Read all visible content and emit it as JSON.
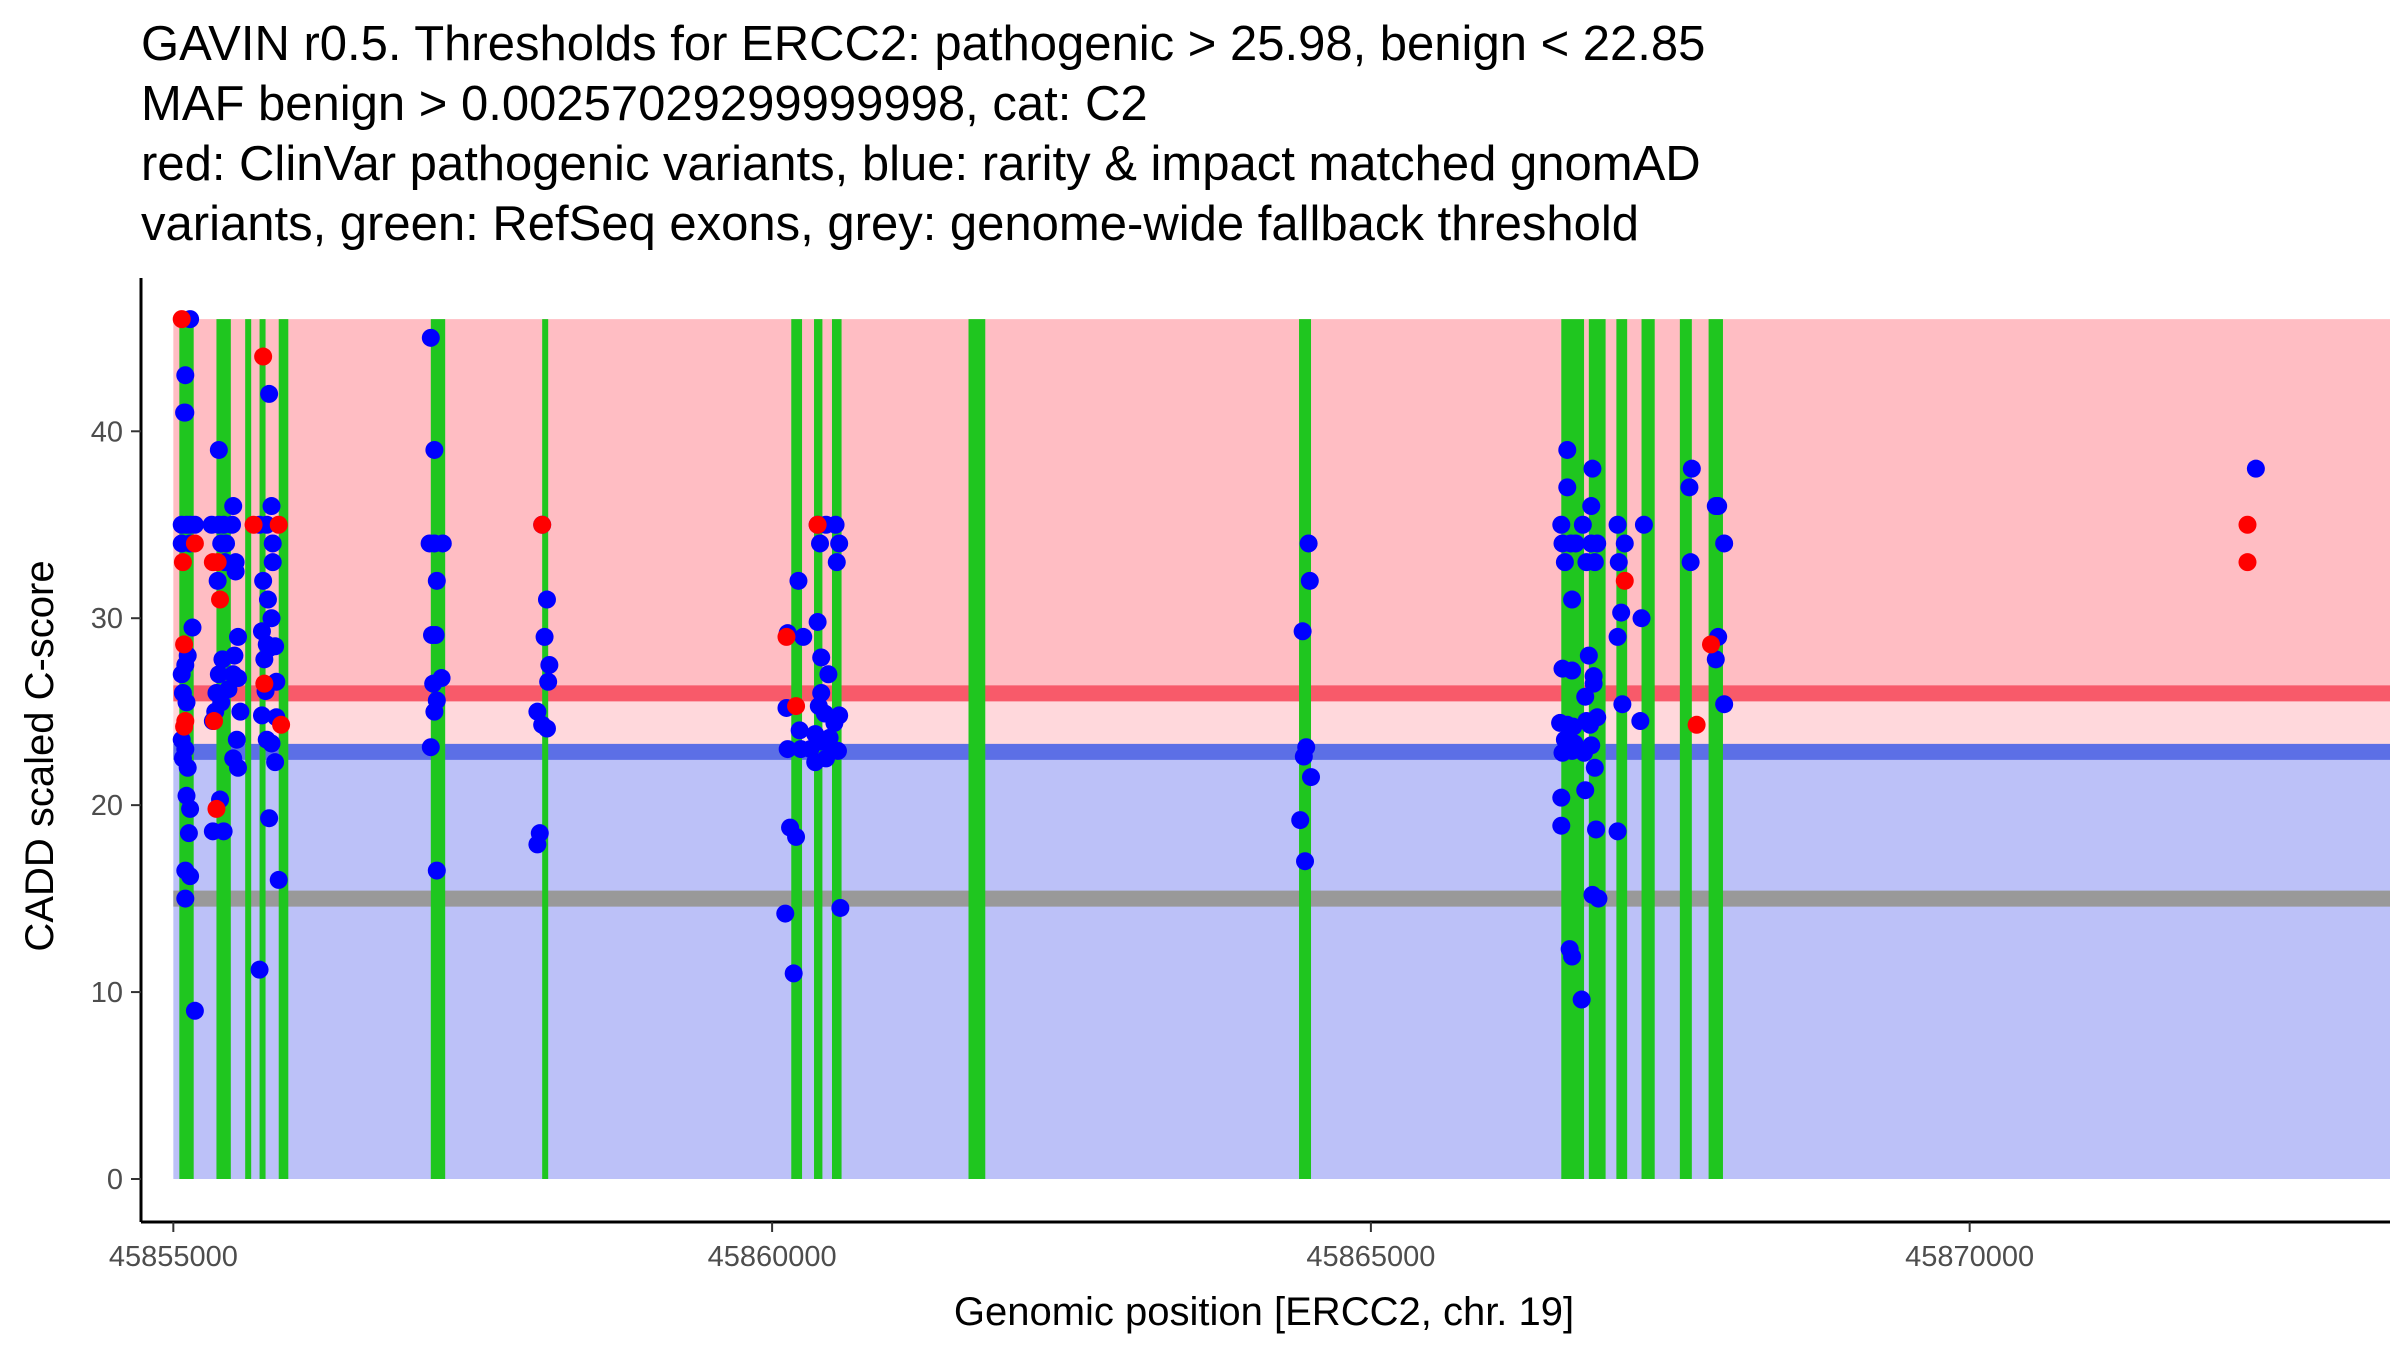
{
  "title_lines": [
    "GAVIN r0.5. Thresholds for ERCC2: pathogenic > 25.98, benign < 22.85",
    "MAF benign > 0.00257029299999998, cat: C2",
    "red: ClinVar pathogenic variants, blue: rarity & impact matched gnomAD",
    "variants, green: RefSeq exons, grey: genome-wide fallback threshold"
  ],
  "chart_data": {
    "type": "scatter",
    "xlabel": "Genomic position [ERCC2, chr. 19]",
    "ylabel": "CADD scaled C-score",
    "xlim": [
      45854730,
      45873510
    ],
    "ylim": [
      -2.3,
      48.2
    ],
    "x_ticks": [
      45855000,
      45860000,
      45865000,
      45870000
    ],
    "x_tick_labels": [
      "45855000",
      "45860000",
      "45865000",
      "45870000"
    ],
    "y_ticks": [
      0,
      10,
      20,
      30,
      40
    ],
    "y_tick_labels": [
      "0",
      "10",
      "20",
      "30",
      "40"
    ],
    "colors": {
      "pathogenic_region": "#ffbdc3",
      "vus_region": "#ffd8dc",
      "benign_region": "#bcc1f8",
      "pathogenic_line": "#f85a6a",
      "benign_line": "#5c6fe6",
      "fallback_line": "#999999",
      "exon": "#1fc61f",
      "pathogenic_point": "#ff0000",
      "population_point": "#0000ff"
    },
    "regions": {
      "x_start": 45855000,
      "x_end": 45873510,
      "pathogenic": [
        25.98,
        46
      ],
      "vus": [
        22.85,
        25.98
      ],
      "benign": [
        0,
        22.85
      ]
    },
    "thresholds": {
      "pathogenic": 25.98,
      "benign": 22.85,
      "fallback": 15
    },
    "exons": [
      [
        45855050,
        45855170
      ],
      [
        45855360,
        45855480
      ],
      [
        45855600,
        45855650
      ],
      [
        45855720,
        45855770
      ],
      [
        45855880,
        45855960
      ],
      [
        45857150,
        45857270
      ],
      [
        45858080,
        45858130
      ],
      [
        45860160,
        45860250
      ],
      [
        45860350,
        45860420
      ],
      [
        45860500,
        45860580
      ],
      [
        45861640,
        45861780
      ],
      [
        45864400,
        45864500
      ],
      [
        45866590,
        45866780
      ],
      [
        45866820,
        45866960
      ],
      [
        45867050,
        45867140
      ],
      [
        45867260,
        45867370
      ],
      [
        45867580,
        45867680
      ],
      [
        45867820,
        45867940
      ]
    ],
    "series": [
      {
        "name": "ClinVar pathogenic",
        "color": "#ff0000",
        "points": [
          [
            45855070,
            46
          ],
          [
            45855100,
            24.5
          ],
          [
            45855090,
            24.2
          ],
          [
            45855080,
            33
          ],
          [
            45855090,
            28.6
          ],
          [
            45855180,
            34
          ],
          [
            45855340,
            24.5
          ],
          [
            45855330,
            33
          ],
          [
            45855370,
            33
          ],
          [
            45855360,
            19.8
          ],
          [
            45855390,
            31
          ],
          [
            45855670,
            35
          ],
          [
            45855750,
            44
          ],
          [
            45855760,
            26.5
          ],
          [
            45855880,
            35
          ],
          [
            45855900,
            24.3
          ],
          [
            45858080,
            35
          ],
          [
            45860120,
            29
          ],
          [
            45860200,
            25.3
          ],
          [
            45860380,
            35
          ],
          [
            45867120,
            32
          ],
          [
            45867720,
            24.3
          ],
          [
            45867840,
            28.6
          ],
          [
            45872320,
            35
          ],
          [
            45872320,
            33
          ]
        ]
      },
      {
        "name": "gnomAD matched",
        "color": "#0000ff",
        "points": [
          [
            45855140,
            46
          ],
          [
            45855100,
            43
          ],
          [
            45855090,
            41
          ],
          [
            45855100,
            41
          ],
          [
            45855070,
            35
          ],
          [
            45855110,
            35
          ],
          [
            45855140,
            35
          ],
          [
            45855180,
            35
          ],
          [
            45855070,
            34
          ],
          [
            45855140,
            34
          ],
          [
            45855070,
            27
          ],
          [
            45855100,
            27.5
          ],
          [
            45855080,
            26
          ],
          [
            45855110,
            25.5
          ],
          [
            45855070,
            23.5
          ],
          [
            45855100,
            23
          ],
          [
            45855080,
            22.5
          ],
          [
            45855120,
            22
          ],
          [
            45855110,
            20.5
          ],
          [
            45855140,
            19.8
          ],
          [
            45855130,
            18.5
          ],
          [
            45855100,
            16.5
          ],
          [
            45855140,
            16.2
          ],
          [
            45855100,
            15
          ],
          [
            45855180,
            9
          ],
          [
            45855160,
            29.5
          ],
          [
            45855120,
            28
          ],
          [
            45855380,
            39
          ],
          [
            45855320,
            35
          ],
          [
            45855380,
            35
          ],
          [
            45855400,
            34
          ],
          [
            45855420,
            35
          ],
          [
            45855440,
            34
          ],
          [
            45855370,
            32
          ],
          [
            45855430,
            33
          ],
          [
            45855410,
            27.8
          ],
          [
            45855380,
            27
          ],
          [
            45855360,
            26
          ],
          [
            45855400,
            25.5
          ],
          [
            45855350,
            25
          ],
          [
            45855330,
            24.5
          ],
          [
            45855390,
            20.3
          ],
          [
            45855330,
            18.6
          ],
          [
            45855420,
            18.6
          ],
          [
            45855460,
            26.2
          ],
          [
            45855500,
            36
          ],
          [
            45855520,
            32.5
          ],
          [
            45855540,
            29
          ],
          [
            45855510,
            28
          ],
          [
            45855500,
            27
          ],
          [
            45855540,
            26.8
          ],
          [
            45855560,
            25
          ],
          [
            45855530,
            23.5
          ],
          [
            45855500,
            22.5
          ],
          [
            45855540,
            22
          ],
          [
            45855490,
            35
          ],
          [
            45855520,
            33
          ],
          [
            45855800,
            42
          ],
          [
            45855820,
            36
          ],
          [
            45855780,
            35
          ],
          [
            45855830,
            34
          ],
          [
            45855720,
            35
          ],
          [
            45855750,
            32
          ],
          [
            45855830,
            33
          ],
          [
            45855790,
            31
          ],
          [
            45855820,
            30
          ],
          [
            45855740,
            29.3
          ],
          [
            45855780,
            28.6
          ],
          [
            45855800,
            28.4
          ],
          [
            45855850,
            28.5
          ],
          [
            45855760,
            27.8
          ],
          [
            45855860,
            26.6
          ],
          [
            45855770,
            26.1
          ],
          [
            45855740,
            24.8
          ],
          [
            45855860,
            24.7
          ],
          [
            45855780,
            23.5
          ],
          [
            45855820,
            23.3
          ],
          [
            45855850,
            22.3
          ],
          [
            45855800,
            19.3
          ],
          [
            45855880,
            16
          ],
          [
            45855720,
            11.2
          ],
          [
            45857150,
            45
          ],
          [
            45857180,
            39
          ],
          [
            45857140,
            34
          ],
          [
            45857180,
            34
          ],
          [
            45857250,
            34
          ],
          [
            45857200,
            32
          ],
          [
            45857160,
            29.1
          ],
          [
            45857190,
            29.1
          ],
          [
            45857240,
            26.8
          ],
          [
            45857170,
            26.5
          ],
          [
            45857200,
            25.6
          ],
          [
            45857180,
            25
          ],
          [
            45857150,
            23.1
          ],
          [
            45857200,
            16.5
          ],
          [
            45858080,
            35
          ],
          [
            45858120,
            31
          ],
          [
            45858100,
            29
          ],
          [
            45858140,
            27.5
          ],
          [
            45858130,
            26.6
          ],
          [
            45858040,
            25
          ],
          [
            45858080,
            24.3
          ],
          [
            45858120,
            24.1
          ],
          [
            45858060,
            18.5
          ],
          [
            45858040,
            17.9
          ],
          [
            45860130,
            29.2
          ],
          [
            45860220,
            32
          ],
          [
            45860260,
            29
          ],
          [
            45860120,
            25.2
          ],
          [
            45860230,
            24
          ],
          [
            45860240,
            23
          ],
          [
            45860130,
            23
          ],
          [
            45860150,
            18.8
          ],
          [
            45860200,
            18.3
          ],
          [
            45860110,
            14.2
          ],
          [
            45860180,
            11
          ],
          [
            45860380,
            35
          ],
          [
            45860400,
            34
          ],
          [
            45860530,
            35
          ],
          [
            45860450,
            35
          ],
          [
            45860560,
            34
          ],
          [
            45860540,
            33
          ],
          [
            45860380,
            29.8
          ],
          [
            45860410,
            27.9
          ],
          [
            45860470,
            27
          ],
          [
            45860410,
            26
          ],
          [
            45860390,
            25.3
          ],
          [
            45860440,
            24.9
          ],
          [
            45860560,
            24.8
          ],
          [
            45860520,
            24.4
          ],
          [
            45860360,
            23.8
          ],
          [
            45860480,
            23.6
          ],
          [
            45860320,
            23
          ],
          [
            45860500,
            23
          ],
          [
            45860550,
            22.9
          ],
          [
            45860360,
            22.3
          ],
          [
            45860570,
            14.5
          ],
          [
            45860450,
            22.5
          ],
          [
            45860400,
            23.4
          ],
          [
            45864430,
            29.3
          ],
          [
            45864480,
            34
          ],
          [
            45864490,
            32
          ],
          [
            45864460,
            23.1
          ],
          [
            45864440,
            22.6
          ],
          [
            45864500,
            21.5
          ],
          [
            45864410,
            19.2
          ],
          [
            45864450,
            17
          ],
          [
            45866640,
            39
          ],
          [
            45866640,
            37
          ],
          [
            45866590,
            35
          ],
          [
            45866600,
            34
          ],
          [
            45866670,
            34
          ],
          [
            45866620,
            33
          ],
          [
            45866710,
            34
          ],
          [
            45866680,
            31
          ],
          [
            45866600,
            27.3
          ],
          [
            45866680,
            27.2
          ],
          [
            45866580,
            24.4
          ],
          [
            45866640,
            24.3
          ],
          [
            45866690,
            24.2
          ],
          [
            45866620,
            23.5
          ],
          [
            45866600,
            22.8
          ],
          [
            45866680,
            22.9
          ],
          [
            45866700,
            23.3
          ],
          [
            45866590,
            20.4
          ],
          [
            45866590,
            18.9
          ],
          [
            45866660,
            12.3
          ],
          [
            45866680,
            11.9
          ],
          [
            45866760,
            9.6
          ],
          [
            45866850,
            38
          ],
          [
            45866840,
            36
          ],
          [
            45866770,
            35
          ],
          [
            45866840,
            34
          ],
          [
            45866890,
            34
          ],
          [
            45866800,
            33
          ],
          [
            45866870,
            33
          ],
          [
            45866820,
            28
          ],
          [
            45866860,
            26.9
          ],
          [
            45866790,
            25.8
          ],
          [
            45866860,
            26.5
          ],
          [
            45866800,
            24.5
          ],
          [
            45866830,
            24.3
          ],
          [
            45866890,
            24.7
          ],
          [
            45866840,
            23.2
          ],
          [
            45866780,
            22.8
          ],
          [
            45866870,
            22
          ],
          [
            45866790,
            20.8
          ],
          [
            45866880,
            18.7
          ],
          [
            45866850,
            15.2
          ],
          [
            45866900,
            15
          ],
          [
            45867060,
            35
          ],
          [
            45867120,
            34
          ],
          [
            45867070,
            33
          ],
          [
            45867060,
            29
          ],
          [
            45867090,
            30.3
          ],
          [
            45867100,
            25.4
          ],
          [
            45867060,
            18.6
          ],
          [
            45867280,
            35
          ],
          [
            45867260,
            30
          ],
          [
            45867250,
            24.5
          ],
          [
            45867680,
            38
          ],
          [
            45867660,
            37
          ],
          [
            45867670,
            33
          ],
          [
            45867880,
            36
          ],
          [
            45867900,
            36
          ],
          [
            45867950,
            34
          ],
          [
            45867900,
            29
          ],
          [
            45867880,
            27.8
          ],
          [
            45867950,
            25.4
          ],
          [
            45872390,
            38
          ]
        ]
      }
    ]
  }
}
